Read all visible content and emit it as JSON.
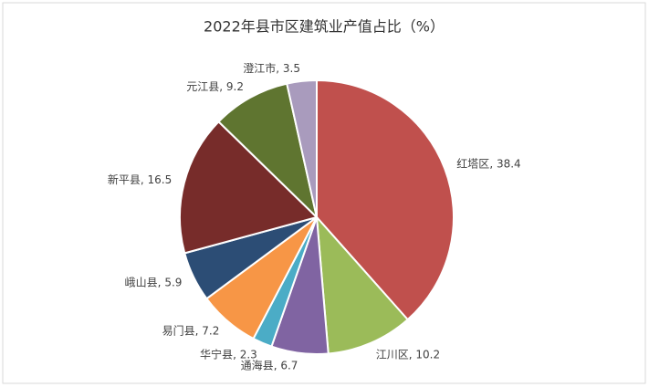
{
  "chart_data": {
    "type": "pie",
    "title": "2022年县市区建筑业产值占比（%）",
    "categories": [
      "红塔区",
      "江川区",
      "通海县",
      "华宁县",
      "易门县",
      "峨山县",
      "新平县",
      "元江县",
      "澄江市"
    ],
    "values": [
      38.4,
      10.2,
      6.7,
      2.3,
      7.2,
      5.9,
      16.5,
      9.2,
      3.5
    ],
    "colors": [
      "#c0504d",
      "#9bbb59",
      "#8064a2",
      "#4bacc6",
      "#f79646",
      "#2c4d75",
      "#772c2a",
      "#5f7530",
      "#a99bbd"
    ],
    "label_separator": ", "
  }
}
